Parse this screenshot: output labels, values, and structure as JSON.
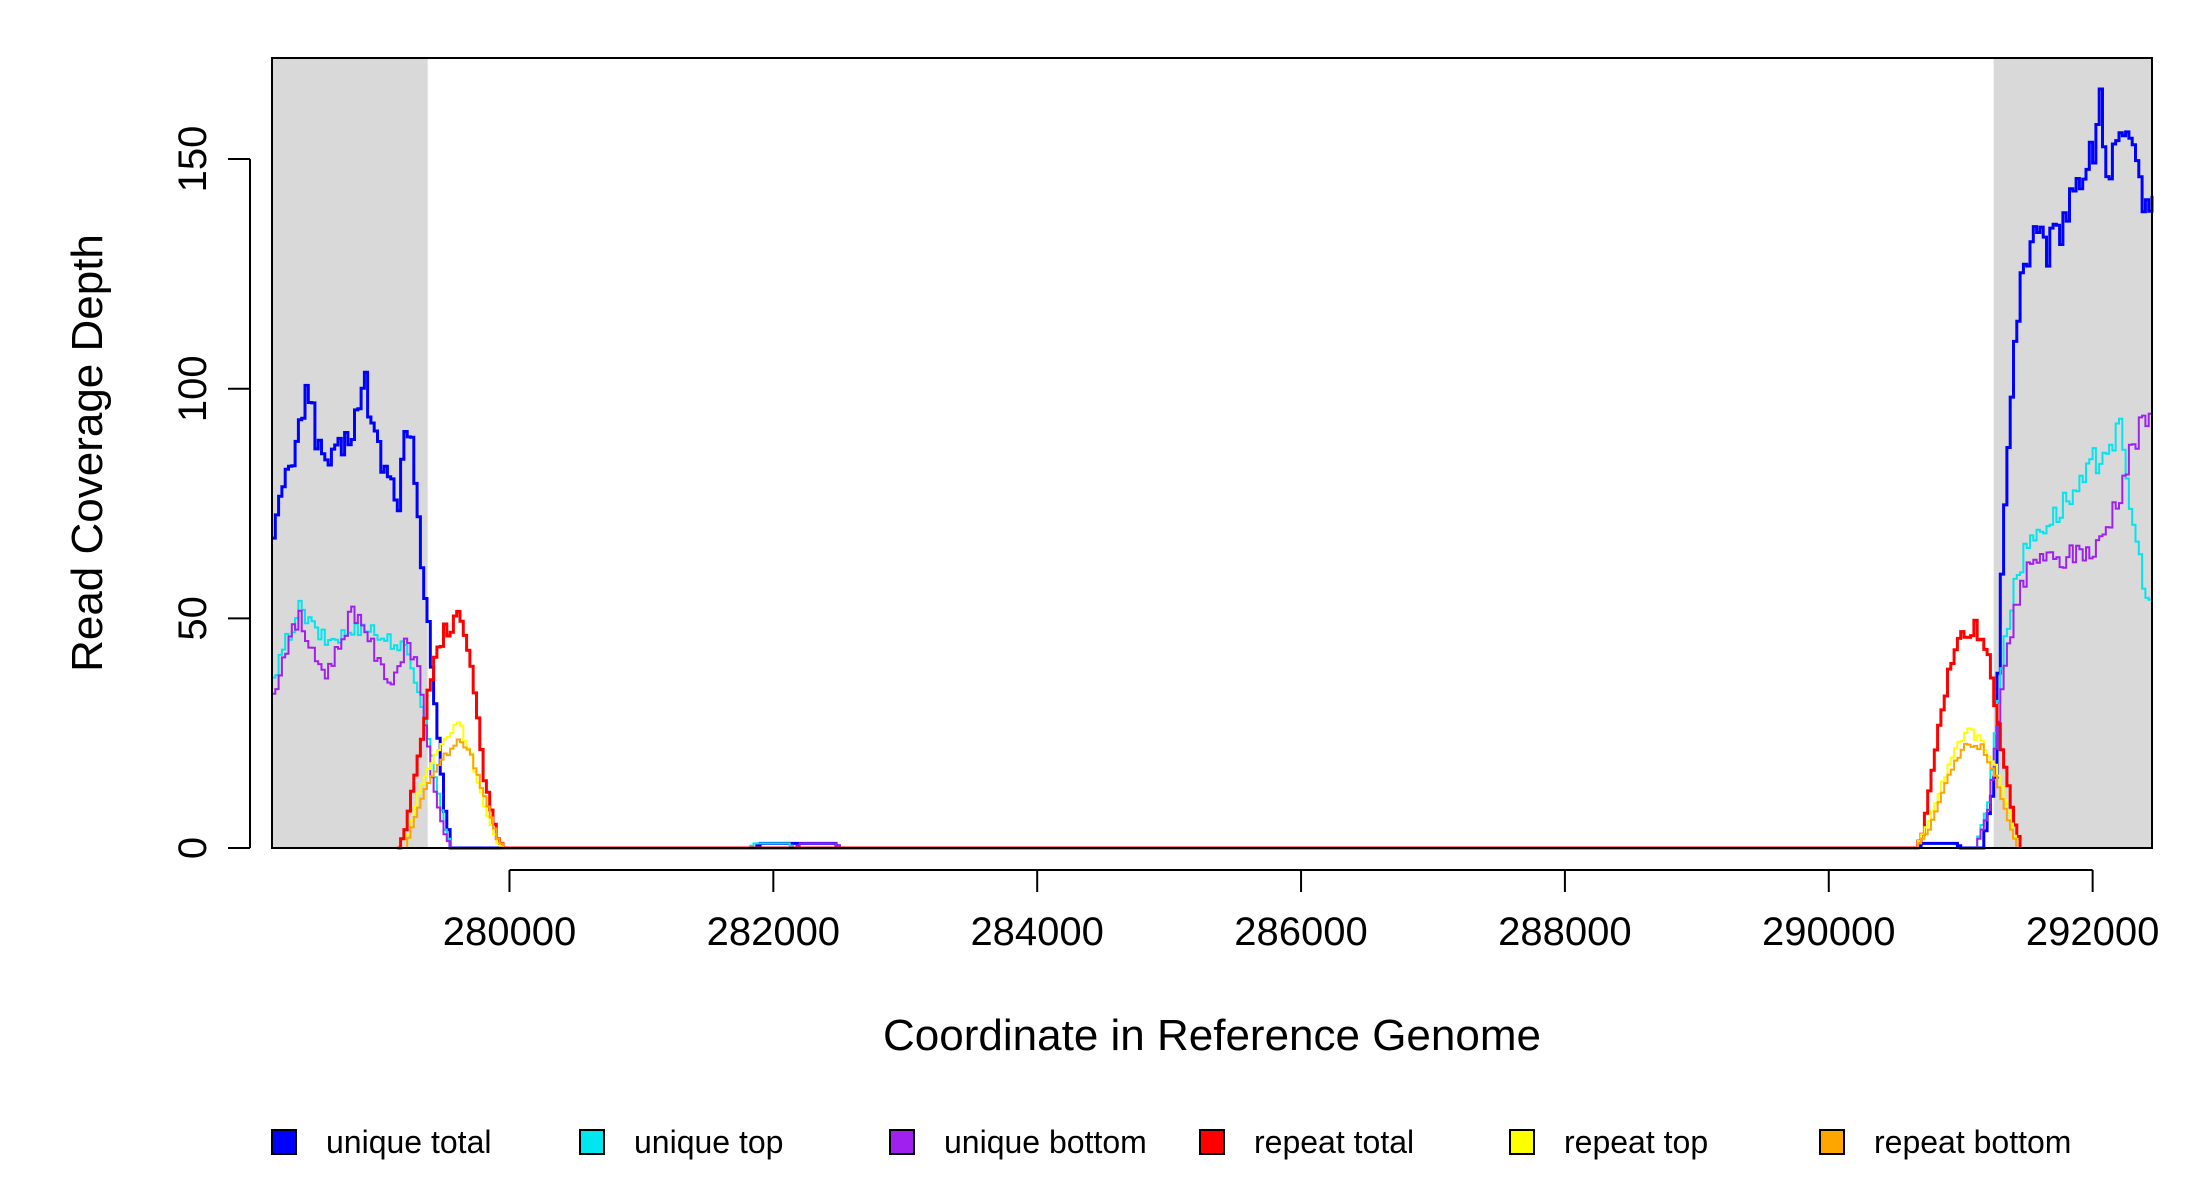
{
  "chart_data": {
    "type": "line",
    "step": true,
    "xlabel": "Coordinate in Reference Genome",
    "ylabel": "Read Coverage Depth",
    "xlim": [
      278200,
      292450
    ],
    "ylim": [
      0,
      172
    ],
    "xticks": [
      280000,
      282000,
      284000,
      286000,
      288000,
      290000,
      292000
    ],
    "yticks": [
      0,
      50,
      100,
      150
    ],
    "grid": false,
    "shaded_regions": [
      {
        "x_start": 278200,
        "x_end": 279380,
        "color": "#d9d9d9"
      },
      {
        "x_start": 291250,
        "x_end": 292450,
        "color": "#d9d9d9"
      }
    ],
    "legend_position": "bottom",
    "series": [
      {
        "name": "unique total",
        "color": "#0000ff",
        "width": 3,
        "points": [
          [
            278200,
            70
          ],
          [
            278300,
            80
          ],
          [
            278400,
            90
          ],
          [
            278450,
            103
          ],
          [
            278500,
            95
          ],
          [
            278550,
            86
          ],
          [
            278650,
            84
          ],
          [
            278750,
            88
          ],
          [
            278850,
            96
          ],
          [
            278900,
            101
          ],
          [
            278950,
            92
          ],
          [
            279050,
            82
          ],
          [
            279150,
            76
          ],
          [
            279200,
            89
          ],
          [
            279250,
            87
          ],
          [
            279300,
            70
          ],
          [
            279400,
            40
          ],
          [
            279500,
            8
          ],
          [
            279550,
            0
          ],
          [
            281850,
            0
          ],
          [
            281900,
            1
          ],
          [
            282450,
            1
          ],
          [
            282500,
            0
          ],
          [
            290650,
            0
          ],
          [
            290700,
            1
          ],
          [
            290950,
            1
          ],
          [
            291000,
            0
          ],
          [
            291150,
            0
          ],
          [
            291250,
            15
          ],
          [
            291300,
            60
          ],
          [
            291350,
            90
          ],
          [
            291400,
            110
          ],
          [
            291450,
            125
          ],
          [
            291550,
            133
          ],
          [
            291650,
            130
          ],
          [
            291750,
            135
          ],
          [
            291850,
            145
          ],
          [
            291950,
            148
          ],
          [
            292000,
            152
          ],
          [
            292050,
            165
          ],
          [
            292100,
            145
          ],
          [
            292200,
            155
          ],
          [
            292300,
            150
          ],
          [
            292400,
            140
          ],
          [
            292450,
            142
          ]
        ]
      },
      {
        "name": "unique top",
        "color": "#00e5ee",
        "width": 2,
        "points": [
          [
            278200,
            36
          ],
          [
            278300,
            45
          ],
          [
            278400,
            52
          ],
          [
            278500,
            48
          ],
          [
            278600,
            45
          ],
          [
            278700,
            46
          ],
          [
            278800,
            47
          ],
          [
            278900,
            49
          ],
          [
            279000,
            46
          ],
          [
            279100,
            45
          ],
          [
            279200,
            43
          ],
          [
            279300,
            35
          ],
          [
            279400,
            20
          ],
          [
            279500,
            4
          ],
          [
            279550,
            0
          ],
          [
            281800,
            0
          ],
          [
            281850,
            1
          ],
          [
            282100,
            1
          ],
          [
            282150,
            0
          ],
          [
            291100,
            0
          ],
          [
            291200,
            10
          ],
          [
            291300,
            40
          ],
          [
            291400,
            58
          ],
          [
            291500,
            66
          ],
          [
            291600,
            70
          ],
          [
            291700,
            72
          ],
          [
            291800,
            76
          ],
          [
            291900,
            78
          ],
          [
            292000,
            84
          ],
          [
            292100,
            88
          ],
          [
            292200,
            90
          ],
          [
            292300,
            70
          ],
          [
            292400,
            55
          ],
          [
            292450,
            50
          ]
        ]
      },
      {
        "name": "unique bottom",
        "color": "#a020f0",
        "width": 2,
        "points": [
          [
            278200,
            33
          ],
          [
            278300,
            44
          ],
          [
            278400,
            50
          ],
          [
            278500,
            42
          ],
          [
            278600,
            38
          ],
          [
            278700,
            44
          ],
          [
            278800,
            52
          ],
          [
            278900,
            48
          ],
          [
            279000,
            40
          ],
          [
            279100,
            36
          ],
          [
            279200,
            44
          ],
          [
            279300,
            40
          ],
          [
            279400,
            15
          ],
          [
            279500,
            3
          ],
          [
            279550,
            0
          ],
          [
            282150,
            0
          ],
          [
            282200,
            1
          ],
          [
            282450,
            1
          ],
          [
            282500,
            0
          ],
          [
            291100,
            0
          ],
          [
            291200,
            8
          ],
          [
            291300,
            35
          ],
          [
            291400,
            52
          ],
          [
            291500,
            60
          ],
          [
            291600,
            64
          ],
          [
            291700,
            62
          ],
          [
            291800,
            63
          ],
          [
            291900,
            65
          ],
          [
            292000,
            64
          ],
          [
            292100,
            70
          ],
          [
            292200,
            78
          ],
          [
            292300,
            88
          ],
          [
            292400,
            93
          ],
          [
            292450,
            92
          ]
        ]
      },
      {
        "name": "repeat total",
        "color": "#ff0000",
        "width": 3,
        "points": [
          [
            279150,
            0
          ],
          [
            279200,
            4
          ],
          [
            279300,
            20
          ],
          [
            279400,
            38
          ],
          [
            279500,
            47
          ],
          [
            279600,
            50
          ],
          [
            279700,
            40
          ],
          [
            279800,
            15
          ],
          [
            279900,
            2
          ],
          [
            279950,
            0
          ],
          [
            290650,
            0
          ],
          [
            290700,
            3
          ],
          [
            290800,
            22
          ],
          [
            290900,
            38
          ],
          [
            291000,
            47
          ],
          [
            291100,
            48
          ],
          [
            291200,
            42
          ],
          [
            291300,
            22
          ],
          [
            291400,
            5
          ],
          [
            291450,
            0
          ]
        ]
      },
      {
        "name": "repeat top",
        "color": "#ffff00",
        "width": 2,
        "points": [
          [
            279200,
            0
          ],
          [
            279300,
            12
          ],
          [
            279400,
            19
          ],
          [
            279500,
            23
          ],
          [
            279600,
            28
          ],
          [
            279700,
            20
          ],
          [
            279800,
            9
          ],
          [
            279900,
            1
          ],
          [
            279950,
            0
          ],
          [
            290650,
            0
          ],
          [
            290750,
            6
          ],
          [
            290850,
            14
          ],
          [
            290950,
            22
          ],
          [
            291050,
            26
          ],
          [
            291150,
            23
          ],
          [
            291250,
            18
          ],
          [
            291350,
            8
          ],
          [
            291420,
            0
          ]
        ]
      },
      {
        "name": "repeat bottom",
        "color": "#ffa500",
        "width": 2,
        "points": [
          [
            278200,
            0
          ],
          [
            279200,
            0
          ],
          [
            279300,
            9
          ],
          [
            279400,
            16
          ],
          [
            279500,
            20
          ],
          [
            279600,
            24
          ],
          [
            279700,
            20
          ],
          [
            279800,
            11
          ],
          [
            279900,
            2
          ],
          [
            279950,
            0
          ],
          [
            290650,
            0
          ],
          [
            290750,
            4
          ],
          [
            290850,
            12
          ],
          [
            290950,
            19
          ],
          [
            291050,
            23
          ],
          [
            291150,
            22
          ],
          [
            291250,
            16
          ],
          [
            291350,
            6
          ],
          [
            291420,
            0
          ],
          [
            292450,
            0
          ]
        ]
      }
    ]
  }
}
